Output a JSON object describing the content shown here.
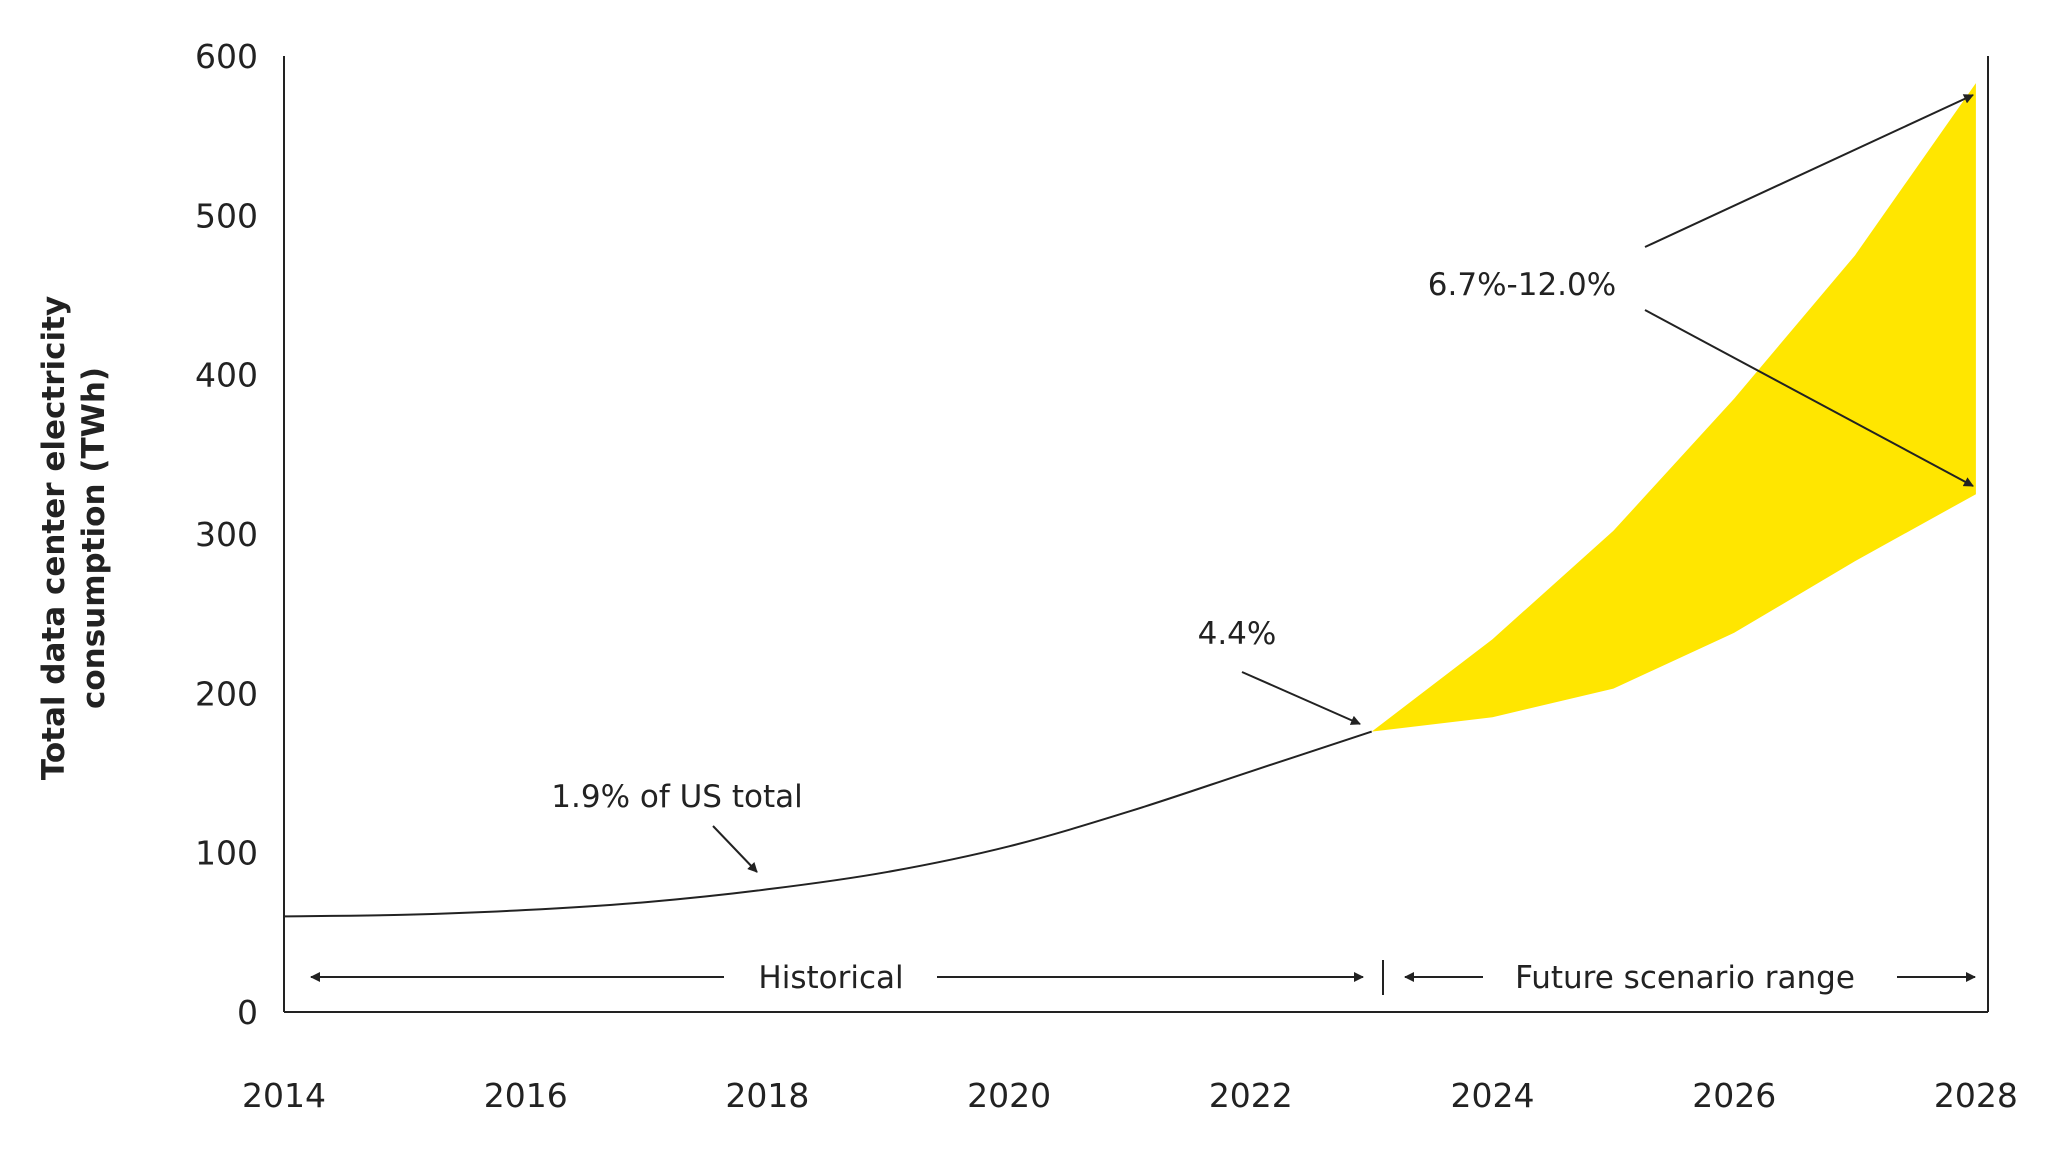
{
  "chart_data": {
    "type": "area",
    "ylabel": [
      "Total data center electricity",
      "consumption (TWh)"
    ],
    "xlabel": "",
    "x_ticks": [
      "2014",
      "2016",
      "2018",
      "2020",
      "2022",
      "2024",
      "2026",
      "2028"
    ],
    "y_ticks": [
      "0",
      "100",
      "200",
      "300",
      "400",
      "500",
      "600"
    ],
    "xlim": [
      2014,
      2028.1
    ],
    "ylim": [
      0,
      600
    ],
    "grid": false,
    "colors": {
      "line": "#222222",
      "band": "#FFE600"
    },
    "historical": {
      "x": [
        2014,
        2015,
        2016,
        2017,
        2018,
        2019,
        2020,
        2021,
        2022,
        2023
      ],
      "y": [
        60,
        61,
        64,
        69,
        77,
        88,
        104,
        126,
        151,
        176
      ]
    },
    "scenario_range": {
      "x": [
        2023,
        2024,
        2025,
        2026,
        2027,
        2028
      ],
      "low": [
        176,
        185,
        203,
        238,
        283,
        325
      ],
      "high": [
        176,
        234,
        302,
        385,
        475,
        583
      ]
    },
    "annotations": {
      "hist_share": "1.9% of US total",
      "share_2023": "4.4%",
      "share_2028": "6.7%-12.0%",
      "historical": "Historical",
      "future": "Future scenario range"
    }
  }
}
